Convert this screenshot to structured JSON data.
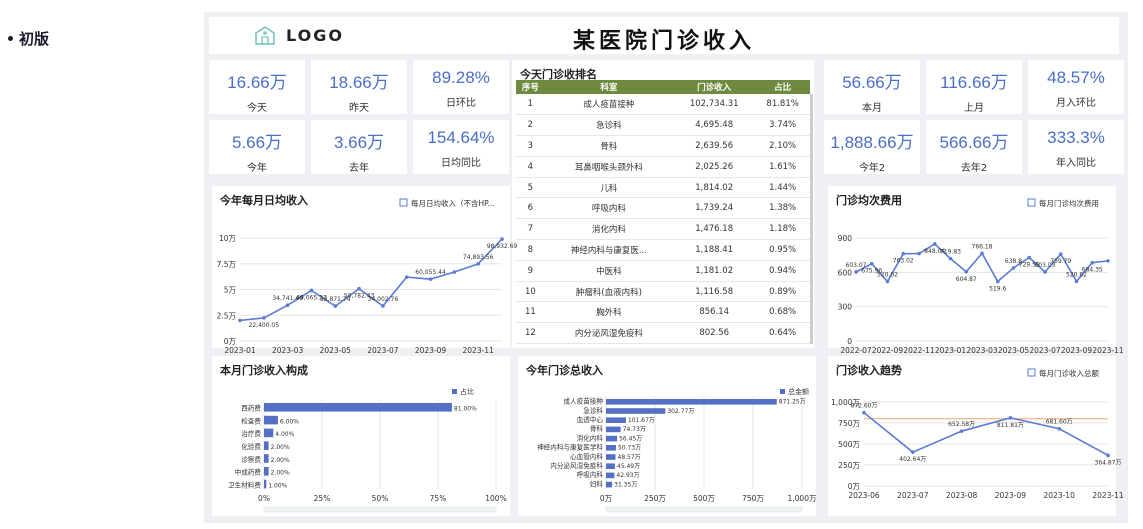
{
  "note": {
    "label": "初版"
  },
  "header": {
    "logo": "LOGO",
    "title": "某医院门诊收入"
  },
  "kpis_left": [
    {
      "value": "16.66万",
      "label": "今天"
    },
    {
      "value": "18.66万",
      "label": "昨天"
    },
    {
      "value": "89.28%",
      "label": "日环比"
    },
    {
      "value": "5.66万",
      "label": "今年"
    },
    {
      "value": "3.66万",
      "label": "去年"
    },
    {
      "value": "154.64%",
      "label": "日均同比"
    }
  ],
  "kpis_right": [
    {
      "value": "56.66万",
      "label": "本月"
    },
    {
      "value": "116.66万",
      "label": "上月"
    },
    {
      "value": "48.57%",
      "label": "月入环比"
    },
    {
      "value": "1,888.66万",
      "label": "今年2"
    },
    {
      "value": "566.66万",
      "label": "去年2"
    },
    {
      "value": "333.3%",
      "label": "年入同比"
    }
  ],
  "ranking": {
    "title": "今天门诊收排名",
    "headers": [
      "序号",
      "科室",
      "门诊收入",
      "占比"
    ],
    "rows": [
      [
        "1",
        "成人疫苗接种",
        "102,734.31",
        "81.81%"
      ],
      [
        "2",
        "急诊科",
        "4,695.48",
        "3.74%"
      ],
      [
        "3",
        "骨科",
        "2,639.56",
        "2.10%"
      ],
      [
        "4",
        "耳鼻咽喉头颈外科",
        "2,025.26",
        "1.61%"
      ],
      [
        "5",
        "儿科",
        "1,814.02",
        "1.44%"
      ],
      [
        "6",
        "呼吸内科",
        "1,739.24",
        "1.38%"
      ],
      [
        "7",
        "消化内科",
        "1,476.18",
        "1.18%"
      ],
      [
        "8",
        "神经内科与康复医...",
        "1,188.41",
        "0.95%"
      ],
      [
        "9",
        "中医科",
        "1,181.02",
        "0.94%"
      ],
      [
        "10",
        "肿瘤科(血液内科)",
        "1,116.58",
        "0.89%"
      ],
      [
        "11",
        "胸外科",
        "856.14",
        "0.68%"
      ],
      [
        "12",
        "内分泌风湿免疫科",
        "802.56",
        "0.64%"
      ]
    ]
  },
  "chart_data": [
    {
      "id": "daily",
      "type": "line",
      "title": "今年每月日均收入",
      "legend": "每月日均收入（不含HP...",
      "legend_pos": "top-right",
      "x": [
        "2023-01",
        "2023-02",
        "2023-03",
        "2023-04",
        "2023-05",
        "2023-06",
        "2023-07",
        "2023-08",
        "2023-09",
        "2023-10",
        "2023-11",
        "2023-12"
      ],
      "xticks": [
        "2023-01",
        "2023-03",
        "2023-05",
        "2023-07",
        "2023-09",
        "2023-11"
      ],
      "values": [
        20000,
        22400.05,
        34741.49,
        49065.27,
        33871.74,
        50782.43,
        34002.76,
        62000,
        60055.44,
        67000,
        74893.56,
        98932.69
      ],
      "labels": [
        "",
        "22,400.05",
        "34,741.49",
        "49,065.27",
        "33,871.74",
        "50,782.43",
        "34,002.76",
        "",
        "60,055.44",
        "",
        "74,893.56",
        "98,932.69"
      ],
      "yticks": [
        "0万",
        "2.5万",
        "5万",
        "7.5万",
        "10万"
      ],
      "ylim": [
        0,
        100000
      ]
    },
    {
      "id": "visit",
      "type": "line",
      "title": "门诊均次费用",
      "legend": "每月门诊均次费用",
      "legend_pos": "top-right",
      "x": [
        "2022-07",
        "2022-08",
        "2022-09",
        "2022-10",
        "2022-11",
        "2022-12",
        "2023-01",
        "2023-02",
        "2023-03",
        "2023-04",
        "2023-05",
        "2023-06",
        "2023-07",
        "2023-08",
        "2023-09",
        "2023-10",
        "2023-11"
      ],
      "xticks": [
        "2022-07",
        "2022-09",
        "2022-11",
        "2023-01",
        "2023-03",
        "2023-05",
        "2023-07",
        "2023-09",
        "2023-11"
      ],
      "values": [
        603.07,
        675.96,
        520.02,
        763.02,
        764,
        848.04,
        719.83,
        604.87,
        766.18,
        519.6,
        638.8,
        729.55,
        603.03,
        759.79,
        520.62,
        684.35,
        700
      ],
      "labels": [
        "603.07",
        "675.96",
        "520.02",
        "763.02",
        "",
        "848.04",
        "719.83",
        "604.87",
        "766.18",
        "519.6",
        "638.8",
        "729.55",
        "603.03",
        "759.79",
        "520.62",
        "684.35",
        ""
      ],
      "yticks": [
        "0",
        "300",
        "600",
        "900"
      ],
      "ylim": [
        0,
        900
      ]
    },
    {
      "id": "composition",
      "type": "bar",
      "title": "本月门诊收入构成",
      "legend": "占比",
      "legend_pos": "top-right",
      "categories": [
        "西药费",
        "检查费",
        "治疗费",
        "化验费",
        "诊察费",
        "中成药费",
        "卫生材料费"
      ],
      "values": [
        81,
        6,
        4,
        2,
        2,
        2,
        1
      ],
      "labels": [
        "81.00%",
        "6.00%",
        "4.00%",
        "2.00%",
        "2.00%",
        "2.00%",
        "1.00%"
      ],
      "xticks": [
        "0%",
        "25%",
        "50%",
        "75%",
        "100%"
      ],
      "xlim": [
        0,
        100
      ]
    },
    {
      "id": "total",
      "type": "bar",
      "title": "今年门诊总收入",
      "legend": "总金额",
      "legend_pos": "top-right",
      "categories": [
        "成人疫苗接种",
        "急诊科",
        "血透中心",
        "骨科",
        "消化内科",
        "神经内科与康复医学科",
        "心血管内科",
        "内分泌风湿免疫科",
        "呼吸内科",
        "妇科"
      ],
      "values": [
        871.25,
        302.77,
        101.67,
        74.73,
        56.45,
        50.73,
        48.57,
        45.49,
        42.93,
        31.35
      ],
      "labels": [
        "871.25万",
        "302.77万",
        "101.67万",
        "74.73万",
        "56.45万",
        "50.73万",
        "48.57万",
        "45.49万",
        "42.93万",
        "31.35万"
      ],
      "xticks": [
        "0万",
        "250万",
        "500万",
        "750万",
        "1,000万"
      ],
      "xlim": [
        0,
        1000
      ]
    },
    {
      "id": "trend",
      "type": "line",
      "title": "门诊收入趋势",
      "legend": "每月门诊收入总额",
      "legend_pos": "top-right",
      "x": [
        "2023-06",
        "2023-07",
        "2023-08",
        "2023-09",
        "2023-10",
        "2023-11"
      ],
      "xticks": [
        "2023-06",
        "2023-07",
        "2023-08",
        "2023-09",
        "2023-10",
        "2023-11"
      ],
      "values": [
        872.6,
        402.64,
        652.58,
        811.81,
        681.6,
        364.87
      ],
      "labels": [
        "872.60万",
        "402.64万",
        "652.58万",
        "811.81万",
        "681.60万",
        "364.87万"
      ],
      "yticks": [
        "0万",
        "250万",
        "500万",
        "750万",
        "1,000万"
      ],
      "ylim": [
        0,
        1000
      ],
      "ref_value": 800
    }
  ],
  "colors": {
    "line": "#5b7bd5",
    "bar": "#5470c6",
    "header": "#6d8a3e",
    "kpi": "#4a6fc7",
    "ref": "#f3a66b"
  }
}
